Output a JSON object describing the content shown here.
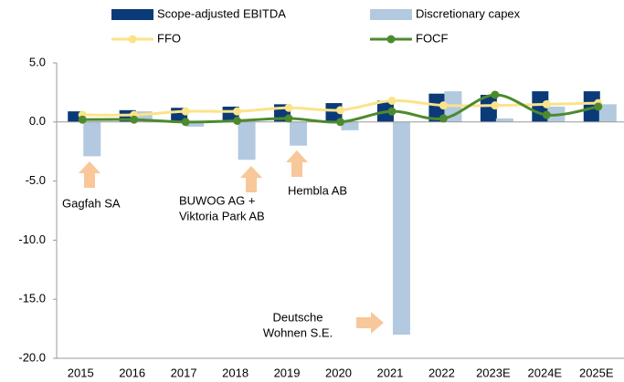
{
  "chart_data": {
    "type": "bar_line",
    "categories": [
      "2015",
      "2016",
      "2017",
      "2018",
      "2019",
      "2020",
      "2021",
      "2022",
      "2023E",
      "2024E",
      "2025E"
    ],
    "series": [
      {
        "name": "Scope-adjusted EBITDA",
        "kind": "bar",
        "color": "#0b3a78",
        "values": [
          0.9,
          1.0,
          1.2,
          1.3,
          1.5,
          1.6,
          1.8,
          2.4,
          2.3,
          2.6,
          2.6
        ]
      },
      {
        "name": "Discretionary capex",
        "kind": "bar",
        "color": "#b3c9df",
        "values": [
          -2.9,
          0.9,
          -0.4,
          -3.2,
          -2.0,
          -0.7,
          -18.0,
          2.6,
          0.3,
          1.3,
          1.5
        ]
      },
      {
        "name": "FFO",
        "kind": "line",
        "color": "#fbe38a",
        "values": [
          0.6,
          0.6,
          0.9,
          0.9,
          1.2,
          1.0,
          1.8,
          1.4,
          1.4,
          1.5,
          1.6
        ]
      },
      {
        "name": "FOCF",
        "kind": "line",
        "color": "#4d8a2e",
        "values": [
          0.2,
          0.2,
          0.0,
          0.1,
          0.3,
          0.0,
          0.9,
          0.3,
          2.3,
          0.6,
          1.3
        ]
      }
    ],
    "ylim": [
      -20,
      5
    ],
    "yticks": [
      {
        "value": -20,
        "label": "-20.0"
      },
      {
        "value": -15,
        "label": "-15.0"
      },
      {
        "value": -10,
        "label": "-10.0"
      },
      {
        "value": -5,
        "label": "-5.0"
      },
      {
        "value": 0,
        "label": "0.0"
      },
      {
        "value": 5,
        "label": "5.0"
      }
    ],
    "annotations": [
      {
        "lines": [
          "Gagfah  SA"
        ]
      },
      {
        "lines": [
          "BUWOG AG +",
          "Viktoria Park AB"
        ]
      },
      {
        "lines": [
          "Hembla AB"
        ]
      },
      {
        "lines": [
          "Deutsche",
          "Wohnen S.E."
        ]
      }
    ],
    "legend": "top",
    "grid": false
  }
}
